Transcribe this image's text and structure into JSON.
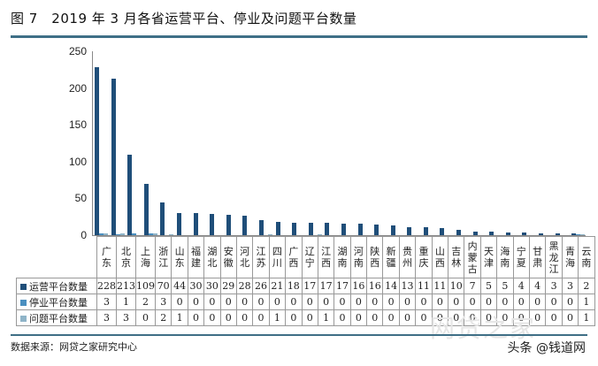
{
  "title": "图 7　2019 年 3 月各省运营平台、停业及问题平台数量",
  "source": "数据来源：网贷之家研究中心",
  "credit": "头条 @钱道网",
  "watermark": "网贷之家",
  "colors": {
    "operating": "#1f4e79",
    "suspended": "#4a8fc0",
    "problem": "#8fb4c8",
    "rule": "#3f6f86"
  },
  "chart_data": {
    "type": "bar",
    "title": "2019 年 3 月各省运营平台、停业及问题平台数量",
    "xlabel": "",
    "ylabel": "",
    "ylim": [
      0,
      250
    ],
    "yticks": [
      0,
      50,
      100,
      150,
      200,
      250
    ],
    "grid": false,
    "legend_position": "data table (bottom-left)",
    "categories": [
      "广东",
      "北京",
      "上海",
      "浙江",
      "山东",
      "福建",
      "湖北",
      "安徽",
      "河北",
      "江苏",
      "四川",
      "广西",
      "辽宁",
      "江西",
      "湖南",
      "河南",
      "陕西",
      "新疆",
      "贵州",
      "重庆",
      "山西",
      "吉林",
      "内蒙古",
      "天津",
      "海南",
      "宁夏",
      "甘肃",
      "黑龙江",
      "青海",
      "云南"
    ],
    "series": [
      {
        "name": "运营平台数量",
        "values": [
          228,
          213,
          109,
          70,
          44,
          30,
          30,
          29,
          28,
          26,
          21,
          18,
          17,
          17,
          17,
          16,
          16,
          14,
          13,
          11,
          11,
          10,
          7,
          5,
          5,
          4,
          4,
          3,
          3,
          2
        ]
      },
      {
        "name": "停业平台数量",
        "values": [
          3,
          1,
          2,
          3,
          0,
          0,
          0,
          0,
          0,
          0,
          0,
          0,
          0,
          0,
          0,
          0,
          0,
          0,
          0,
          0,
          0,
          0,
          0,
          0,
          0,
          0,
          0,
          0,
          0,
          1
        ]
      },
      {
        "name": "问题平台数量",
        "values": [
          3,
          3,
          0,
          2,
          1,
          0,
          0,
          0,
          0,
          0,
          1,
          0,
          0,
          1,
          0,
          0,
          0,
          0,
          0,
          0,
          0,
          0,
          0,
          0,
          0,
          0,
          0,
          0,
          0,
          1
        ]
      }
    ]
  }
}
